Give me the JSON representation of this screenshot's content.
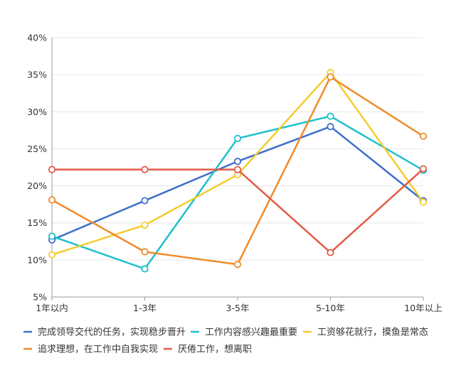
{
  "chart_data": {
    "type": "line",
    "categories": [
      "1年以内",
      "1-3年",
      "3-5年",
      "5-10年",
      "10年以上"
    ],
    "ylim": [
      5,
      40
    ],
    "y_ticks": [
      "5%",
      "10%",
      "15%",
      "20%",
      "25%",
      "30%",
      "35%",
      "40%"
    ],
    "y_tick_values": [
      5,
      10,
      15,
      20,
      25,
      30,
      35,
      40
    ],
    "grid": "horizontal",
    "legend_position": "bottom",
    "series": [
      {
        "name": "完成领导交代的任务，实现稳步晋升",
        "color": "#3F6FCB",
        "values": [
          12.7,
          18.0,
          23.3,
          28.0,
          18.0
        ]
      },
      {
        "name": "工作内容感兴趣最重要",
        "color": "#1EC0CC",
        "values": [
          13.2,
          8.8,
          26.4,
          29.4,
          22.1
        ]
      },
      {
        "name": "工资够花就行，摸鱼是常态",
        "color": "#F4CC2E",
        "values": [
          10.7,
          14.7,
          21.5,
          35.3,
          17.8
        ]
      },
      {
        "name": "追求理想，在工作中自我实现",
        "color": "#EE8C2C",
        "values": [
          18.1,
          11.1,
          9.4,
          34.7,
          26.7
        ]
      },
      {
        "name": "厌倦工作，想离职",
        "color": "#E25B45",
        "values": [
          22.2,
          22.2,
          22.2,
          11.0,
          22.3
        ]
      }
    ]
  }
}
